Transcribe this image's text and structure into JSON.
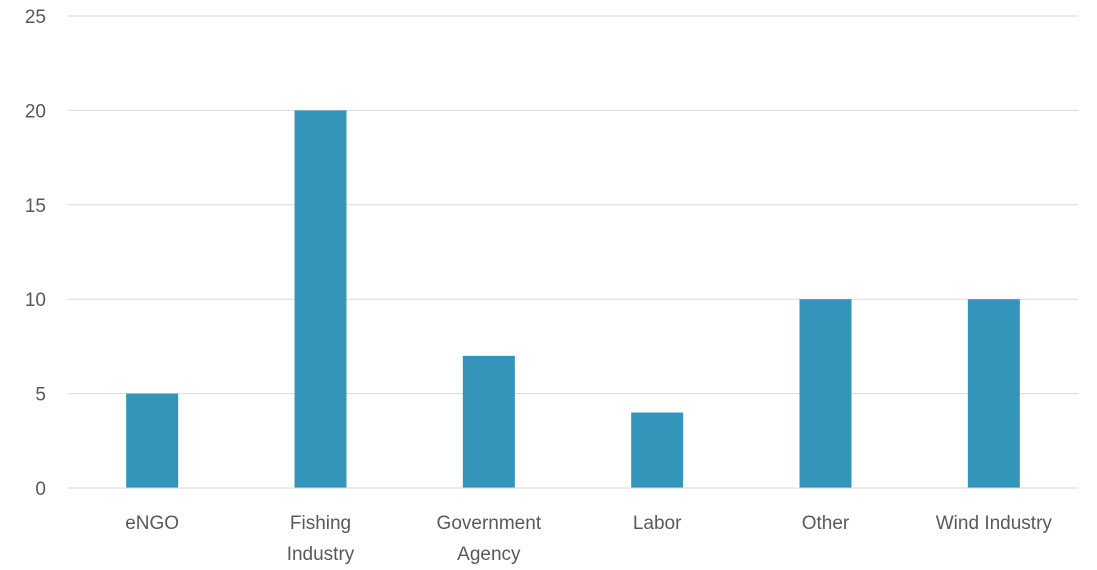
{
  "chart_data": {
    "type": "bar",
    "categories": [
      "eNGO",
      "Fishing Industry",
      "Government Agency",
      "Labor",
      "Other",
      "Wind Industry"
    ],
    "category_lines": [
      [
        "eNGO"
      ],
      [
        "Fishing",
        "Industry"
      ],
      [
        "Government",
        "Agency"
      ],
      [
        "Labor"
      ],
      [
        "Other"
      ],
      [
        "Wind Industry"
      ]
    ],
    "values": [
      5,
      20,
      7,
      4,
      10,
      10
    ],
    "title": "",
    "xlabel": "",
    "ylabel": "",
    "ylim": [
      0,
      25
    ],
    "yticks": [
      0,
      5,
      10,
      15,
      20,
      25
    ],
    "grid": true,
    "legend": "none",
    "bar_color": "#3494ba"
  }
}
